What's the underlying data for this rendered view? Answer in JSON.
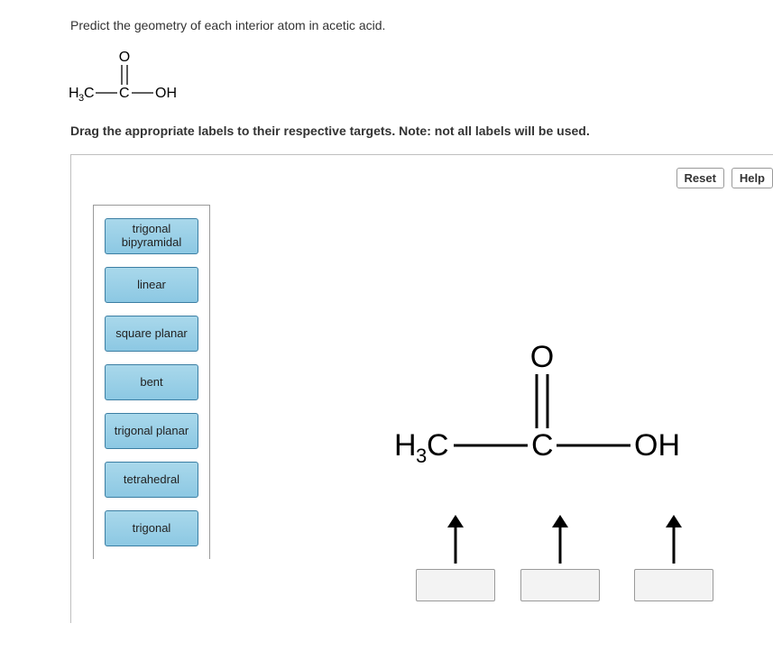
{
  "question": "Predict the geometry of each interior atom in acetic acid.",
  "instruction": "Drag the appropriate labels to their respective targets. Note: not all labels will be used.",
  "buttons": {
    "reset": "Reset",
    "help": "Help"
  },
  "labels": [
    "trigonal bipyramidal",
    "linear",
    "square planar",
    "bent",
    "trigonal planar",
    "tetrahedral",
    "trigonal"
  ],
  "atoms": {
    "h3c": "H",
    "h3c_sub": "3",
    "c1": "C",
    "c2": "C",
    "o_top": "O",
    "oh": "OH"
  },
  "colors": {
    "label_bg_top": "#a9d8eb",
    "label_bg_bot": "#8cc8e3",
    "label_border": "#3b7ea3",
    "frame_border": "#bfbfbf",
    "tray_border": "#9a9a9a",
    "drop_bg": "#f3f3f3",
    "text": "#333333"
  }
}
